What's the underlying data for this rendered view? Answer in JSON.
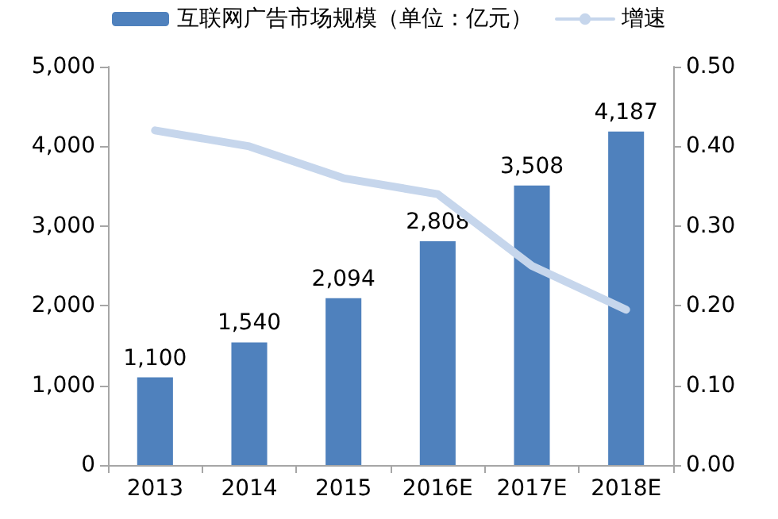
{
  "chart_data": {
    "type": "bar",
    "categories": [
      "2013",
      "2014",
      "2015",
      "2016E",
      "2017E",
      "2018E"
    ],
    "series": [
      {
        "name": "互联网广告市场规模（单位：亿元）",
        "color": "#4f81bd",
        "values": [
          1100,
          1540,
          2094,
          2808,
          3508,
          4187
        ],
        "value_labels": [
          "1,100",
          "1,540",
          "2,094",
          "2,808",
          "3,508",
          "4,187"
        ]
      },
      {
        "name": "增速",
        "type": "line",
        "axis": "y2",
        "color": "#c6d6ec",
        "values": [
          0.42,
          0.4,
          0.36,
          0.34,
          0.25,
          0.195
        ]
      }
    ],
    "ylim": [
      0,
      5000
    ],
    "yticks": [
      {
        "value": 0,
        "label": "0"
      },
      {
        "value": 1000,
        "label": "1,000"
      },
      {
        "value": 2000,
        "label": "2,000"
      },
      {
        "value": 3000,
        "label": "3,000"
      },
      {
        "value": 4000,
        "label": "4,000"
      },
      {
        "value": 5000,
        "label": "5,000"
      }
    ],
    "y2lim": [
      0,
      0.5
    ],
    "y2ticks": [
      {
        "value": 0,
        "label": "0.00"
      },
      {
        "value": 0.1,
        "label": "0.10"
      },
      {
        "value": 0.2,
        "label": "0.20"
      },
      {
        "value": 0.3,
        "label": "0.30"
      },
      {
        "value": 0.4,
        "label": "0.40"
      },
      {
        "value": 0.5,
        "label": "0.50"
      }
    ],
    "legend": "top",
    "grid": false,
    "marker": "none"
  }
}
